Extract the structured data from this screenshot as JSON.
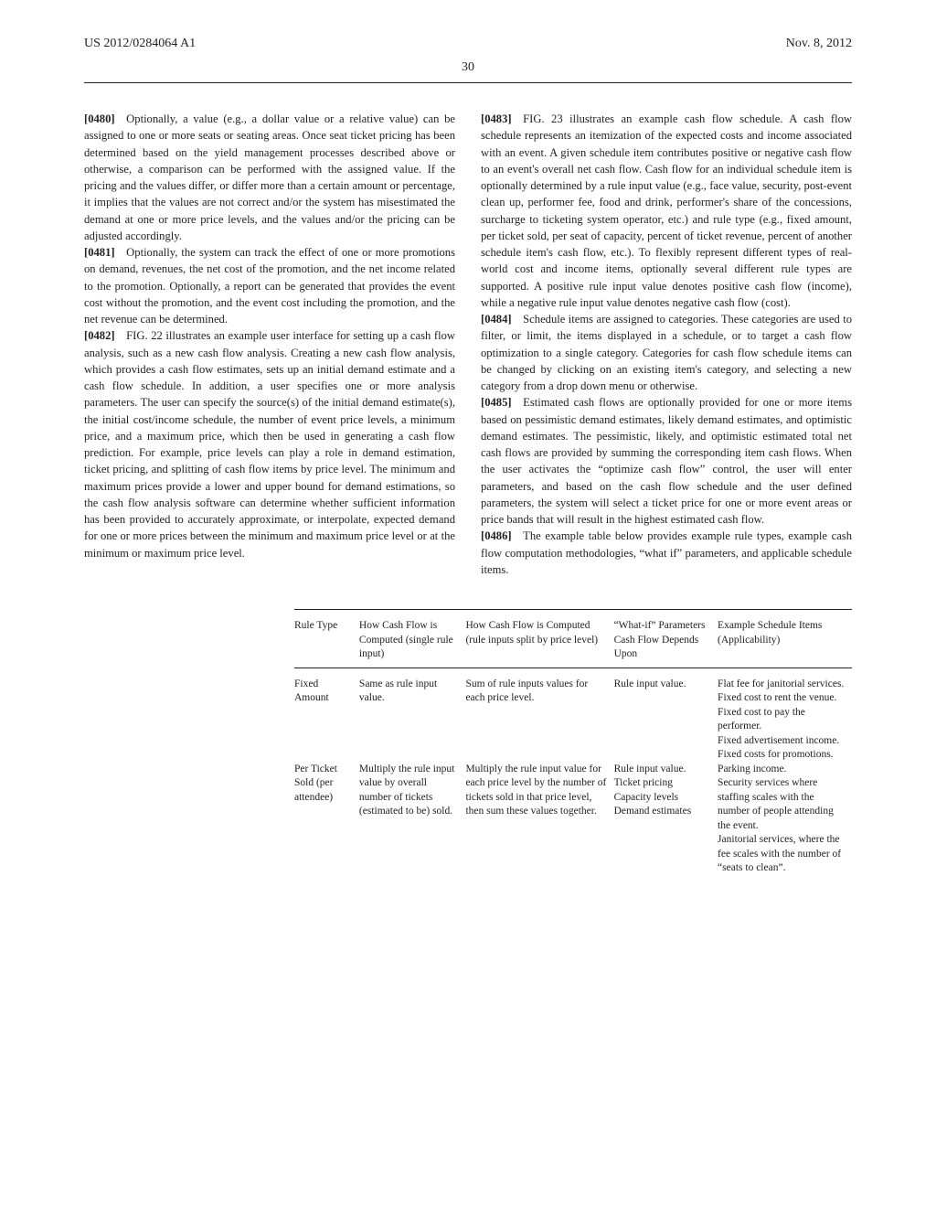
{
  "header": {
    "left": "US 2012/0284064 A1",
    "right": "Nov. 8, 2012",
    "page_number": "30"
  },
  "paragraphs": {
    "p0": {
      "num": "[0480]",
      "text": " Optionally, a value (e.g., a dollar value or a relative value) can be assigned to one or more seats or seating areas. Once seat ticket pricing has been determined based on the yield management processes described above or otherwise, a comparison can be performed with the assigned value. If the pricing and the values differ, or differ more than a certain amount or percentage, it implies that the values are not correct and/or the system has misestimated the demand at one or more price levels, and the values and/or the pricing can be adjusted accordingly."
    },
    "p1": {
      "num": "[0481]",
      "text": " Optionally, the system can track the effect of one or more promotions on demand, revenues, the net cost of the promotion, and the net income related to the promotion. Optionally, a report can be generated that provides the event cost without the promotion, and the event cost including the promotion, and the net revenue can be determined."
    },
    "p2": {
      "num": "[0482]",
      "text": " FIG. 22 illustrates an example user interface for setting up a cash flow analysis, such as a new cash flow analysis. Creating a new cash flow analysis, which provides a cash flow estimates, sets up an initial demand estimate and a cash flow schedule. In addition, a user specifies one or more analysis parameters. The user can specify the source(s) of the initial demand estimate(s), the initial cost/income schedule, the number of event price levels, a minimum price, and a maximum price, which then be used in generating a cash flow prediction. For example, price levels can play a role in demand estimation, ticket pricing, and splitting of cash flow items by price level. The minimum and maximum prices provide a lower and upper bound for demand estimations, so the cash flow analysis software can determine whether sufficient information has been provided to accurately approximate, or interpolate, expected demand for one or more prices between the minimum and maximum price level or at the minimum or maximum price level."
    },
    "p3": {
      "num": "[0483]",
      "text": " FIG. 23 illustrates an example cash flow schedule. A cash flow schedule represents an itemization of the expected costs and income associated with an event. A given schedule item contributes positive or negative cash flow to an event's overall net cash flow. Cash flow for an individual schedule item is optionally determined by a rule input value (e.g., face value, security, post-event clean up, performer fee, food and drink, performer's share of the concessions, surcharge to ticketing system operator, etc.) and rule type (e.g., fixed amount, per ticket sold, per seat of capacity, percent of ticket revenue, percent of another schedule item's cash flow, etc.). To flexibly represent different types of real-world cost and income items, optionally several different rule types are supported. A positive rule input value denotes positive cash flow (income), while a negative rule input value denotes negative cash flow (cost)."
    },
    "p4": {
      "num": "[0484]",
      "text": " Schedule items are assigned to categories. These categories are used to filter, or limit, the items displayed in a schedule, or to target a cash flow optimization to a single category. Categories for cash flow schedule items can be changed by clicking on an existing item's category, and selecting a new category from a drop down menu or otherwise."
    },
    "p5": {
      "num": "[0485]",
      "text": " Estimated cash flows are optionally provided for one or more items based on pessimistic demand estimates, likely demand estimates, and optimistic demand estimates. The pessimistic, likely, and optimistic estimated total net cash flows are provided by summing the corresponding item cash flows. When the user activates the “optimize cash flow” control, the user will enter parameters, and based on the cash flow schedule and the user defined parameters, the system will select a ticket price for one or more event areas or price bands that will result in the highest estimated cash flow."
    },
    "p6": {
      "num": "[0486]",
      "text": " The example table below provides example rule types, example cash flow computation methodologies, “what if” parameters, and applicable schedule items."
    }
  },
  "table": {
    "headers": {
      "h0": "Rule Type",
      "h1": "How Cash Flow is Computed (single rule input)",
      "h2": "How Cash Flow is Computed (rule inputs split by price level)",
      "h3": "“What-if” Parameters Cash Flow Depends Upon",
      "h4": "Example Schedule Items (Applicability)"
    },
    "rows": {
      "r0": {
        "c0": "Fixed Amount",
        "c1": "Same as rule input value.",
        "c2": "Sum of rule inputs values for each price level.",
        "c3": "Rule input value.",
        "c4": "Flat fee for janitorial services.\nFixed cost to rent the venue.\nFixed cost to pay the performer.\nFixed advertisement income.\nFixed costs for promotions."
      },
      "r1": {
        "c0": "Per Ticket Sold (per attendee)",
        "c1": "Multiply the rule input value by overall number of tickets (estimated to be) sold.",
        "c2": "Multiply the rule input value for each price level by the number of tickets sold in that price level, then sum these values together.",
        "c3": "Rule input value.\nTicket pricing\nCapacity levels\nDemand estimates",
        "c4": "Parking income.\nSecurity services where staffing scales with the number of people attending the event.\nJanitorial services, where the fee scales with the number of “seats to clean”."
      }
    }
  }
}
